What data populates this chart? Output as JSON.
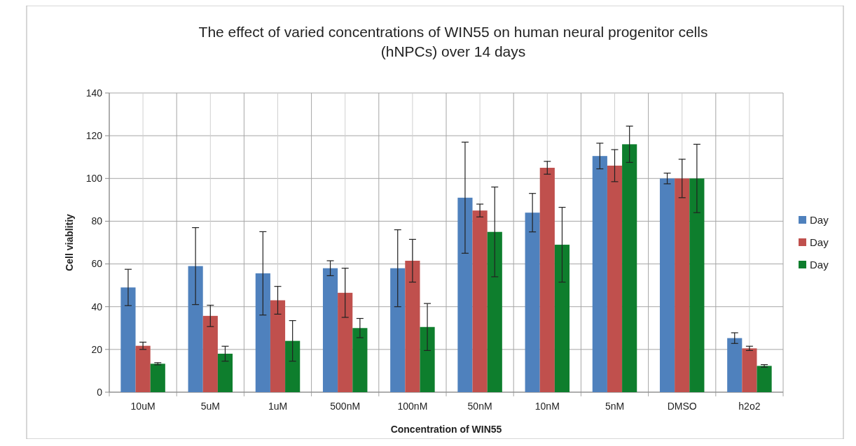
{
  "chart_data": {
    "type": "bar",
    "title": "The effect of varied concentrations of WIN55 on human neural progenitor cells (hNPCs) over 14 days",
    "xlabel": "Concentration of WIN55",
    "ylabel": "Cell viablitiy",
    "categories": [
      "10uM",
      "5uM",
      "1uM",
      "500nM",
      "100nM",
      "50nM",
      "10nM",
      "5nM",
      "DMSO",
      "h2o2"
    ],
    "series": [
      {
        "name": "Day",
        "color": "#4f81bd",
        "values": [
          49,
          59,
          55.6,
          58,
          58,
          91,
          84,
          110.5,
          100,
          25.3
        ],
        "errors": [
          8.5,
          18,
          19.5,
          3.5,
          18,
          26,
          9,
          6,
          2.5,
          2.5
        ]
      },
      {
        "name": "Day",
        "color": "#c0504d",
        "values": [
          21.7,
          35.7,
          43,
          46.5,
          61.5,
          85,
          105,
          106,
          100,
          20.5
        ],
        "errors": [
          1.7,
          5,
          6.5,
          11.5,
          10,
          3,
          3,
          7.5,
          9,
          1
        ]
      },
      {
        "name": "Day",
        "color": "#0e7e2d",
        "values": [
          13.3,
          18,
          24,
          30,
          30.5,
          75,
          69,
          116,
          100,
          12.3
        ],
        "errors": [
          0.5,
          3.5,
          9.5,
          4.5,
          11,
          21,
          17.5,
          8.5,
          16,
          0.6
        ]
      }
    ],
    "ylim": [
      0,
      140
    ],
    "yticks": [
      0,
      20,
      40,
      60,
      80,
      100,
      120,
      140
    ],
    "grid": true,
    "legend": "right"
  }
}
